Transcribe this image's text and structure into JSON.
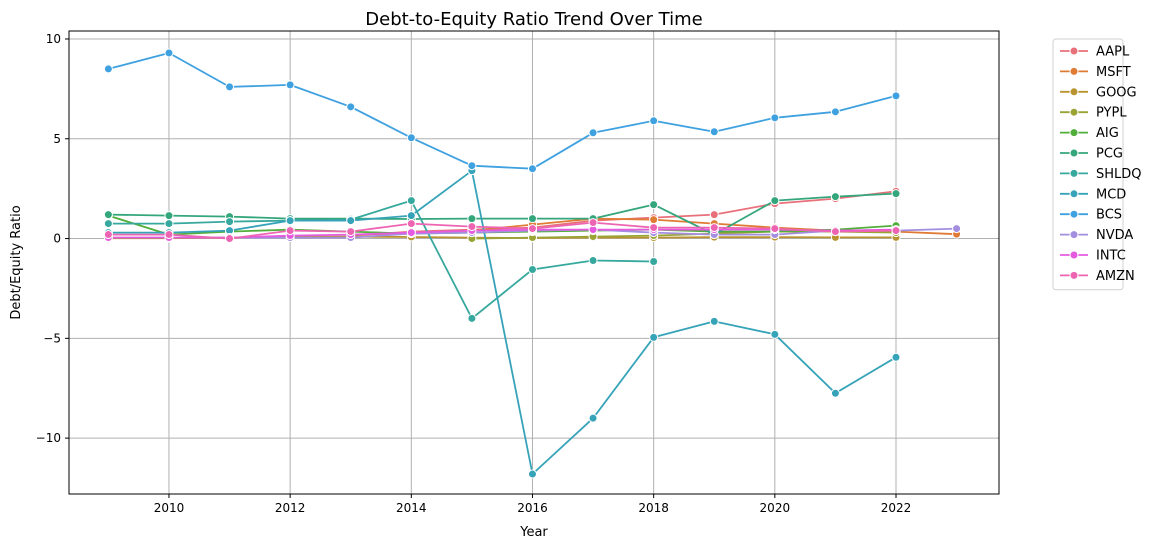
{
  "chart_data": {
    "type": "line",
    "title": "Debt-to-Equity Ratio Trend Over Time",
    "xlabel": "Year",
    "ylabel": "Debt/Equity Ratio",
    "xlim": [
      2008.35,
      2023.7
    ],
    "ylim": [
      -12.8,
      10.4
    ],
    "xticks": [
      2010,
      2012,
      2014,
      2016,
      2018,
      2020,
      2022
    ],
    "yticks": [
      10,
      5,
      0,
      -5,
      -10
    ],
    "ytick_labels": [
      "10",
      "5",
      "0",
      "−5",
      "−10"
    ],
    "grid": true,
    "legend_position": "outside-right",
    "series": [
      {
        "name": "AAPL",
        "color": "#e8707a",
        "x": [
          2013,
          2014,
          2015,
          2016,
          2017,
          2018,
          2019,
          2020,
          2021,
          2022
        ],
        "y": [
          0.15,
          0.35,
          0.45,
          0.55,
          0.9,
          1.05,
          1.2,
          1.75,
          2.0,
          2.37
        ]
      },
      {
        "name": "MSFT",
        "color": "#e07b35",
        "x": [
          2013,
          2014,
          2015,
          2016,
          2017,
          2018,
          2019,
          2020,
          2021,
          2022,
          2023
        ],
        "y": [
          0.2,
          0.25,
          0.4,
          0.7,
          1.0,
          0.95,
          0.75,
          0.55,
          0.4,
          0.35,
          0.22
        ]
      },
      {
        "name": "GOOG",
        "color": "#b89330",
        "x": [
          2009,
          2010,
          2011,
          2012,
          2013,
          2014,
          2015,
          2016,
          2017,
          2018,
          2019,
          2020,
          2021,
          2022
        ],
        "y": [
          0.02,
          0.02,
          0.05,
          0.1,
          0.1,
          0.08,
          0.05,
          0.03,
          0.05,
          0.05,
          0.07,
          0.07,
          0.06,
          0.06
        ]
      },
      {
        "name": "PYPL",
        "color": "#9aa435",
        "x": [
          2015,
          2016,
          2017,
          2018,
          2019,
          2020,
          2021,
          2022
        ],
        "y": [
          0.0,
          0.05,
          0.1,
          0.15,
          0.25,
          0.35,
          0.35,
          0.3
        ]
      },
      {
        "name": "AIG",
        "color": "#52ae3a",
        "x": [
          2009,
          2010,
          2011,
          2012,
          2013,
          2014,
          2015,
          2016,
          2017,
          2018,
          2019,
          2020,
          2021,
          2022
        ],
        "y": [
          1.15,
          0.2,
          0.35,
          0.45,
          0.35,
          0.25,
          0.3,
          0.35,
          0.4,
          0.45,
          0.35,
          0.35,
          0.45,
          0.65
        ]
      },
      {
        "name": "PCG",
        "color": "#34a67c",
        "x": [
          2009,
          2010,
          2011,
          2012,
          2013,
          2014,
          2015,
          2016,
          2017,
          2018,
          2019,
          2020,
          2021,
          2022
        ],
        "y": [
          1.2,
          1.15,
          1.1,
          1.0,
          1.0,
          0.98,
          1.0,
          1.0,
          1.0,
          1.7,
          0.2,
          1.9,
          2.1,
          2.25
        ]
      },
      {
        "name": "SHLDQ",
        "color": "#37a89d",
        "x": [
          2009,
          2010,
          2011,
          2012,
          2013,
          2014,
          2015,
          2016,
          2017,
          2018
        ],
        "y": [
          0.75,
          0.75,
          0.85,
          0.9,
          0.95,
          1.9,
          -4.0,
          -1.55,
          -1.1,
          -1.15
        ]
      },
      {
        "name": "MCD",
        "color": "#36a3b8",
        "x": [
          2009,
          2010,
          2011,
          2012,
          2013,
          2014,
          2015,
          2016,
          2017,
          2018,
          2019,
          2020,
          2021,
          2022
        ],
        "y": [
          0.3,
          0.3,
          0.4,
          0.9,
          0.9,
          1.15,
          3.4,
          -11.8,
          -9.0,
          -4.95,
          -4.15,
          -4.8,
          -7.75,
          -5.95
        ]
      },
      {
        "name": "BCS",
        "color": "#3fa1e0",
        "x": [
          2009,
          2010,
          2011,
          2012,
          2013,
          2014,
          2015,
          2016,
          2017,
          2018,
          2019,
          2020,
          2021,
          2022
        ],
        "y": [
          8.5,
          9.3,
          7.6,
          7.7,
          6.6,
          5.05,
          3.65,
          3.5,
          5.3,
          5.9,
          5.35,
          6.05,
          6.35,
          7.15
        ]
      },
      {
        "name": "NVDA",
        "color": "#a38ee0",
        "x": [
          2009,
          2010,
          2011,
          2012,
          2013,
          2014,
          2015,
          2016,
          2017,
          2018,
          2019,
          2020,
          2021,
          2022,
          2023
        ],
        "y": [
          0.05,
          0.05,
          0.05,
          0.05,
          0.05,
          0.25,
          0.3,
          0.4,
          0.45,
          0.3,
          0.2,
          0.2,
          0.4,
          0.4,
          0.5
        ]
      },
      {
        "name": "INTC",
        "color": "#e55be0",
        "x": [
          2009,
          2010,
          2011,
          2012,
          2013,
          2014,
          2015,
          2016,
          2017,
          2018,
          2019,
          2020,
          2021,
          2022
        ],
        "y": [
          0.05,
          0.05,
          0.05,
          0.15,
          0.2,
          0.3,
          0.4,
          0.45,
          0.45,
          0.45,
          0.45,
          0.45,
          0.4,
          0.45
        ]
      },
      {
        "name": "AMZN",
        "color": "#ed65b2",
        "x": [
          2009,
          2010,
          2011,
          2012,
          2013,
          2014,
          2015,
          2016,
          2017,
          2018,
          2019,
          2020,
          2021,
          2022
        ],
        "y": [
          0.2,
          0.2,
          0.0,
          0.4,
          0.35,
          0.75,
          0.6,
          0.5,
          0.8,
          0.55,
          0.55,
          0.5,
          0.35,
          0.4
        ]
      }
    ]
  }
}
